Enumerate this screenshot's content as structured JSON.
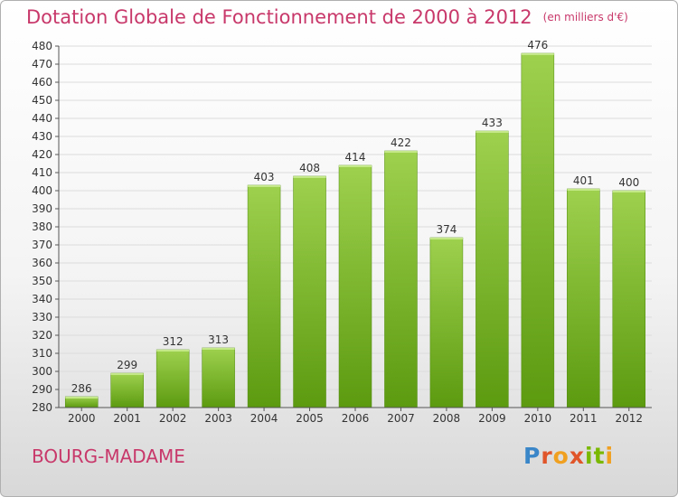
{
  "header": {
    "title": "Dotation Globale de Fonctionnement de 2000 à 2012",
    "unit": "(en milliers d'€)"
  },
  "footer": {
    "commune": "BOURG-MADAME",
    "logo": "Proxiti"
  },
  "colors": {
    "title": "#c8386a",
    "bar_top": "#9ed14e",
    "bar_bottom": "#5c9a10",
    "grid": "#dcdcdc",
    "axis": "#555555"
  },
  "chart_data": {
    "type": "bar",
    "title": "Dotation Globale de Fonctionnement de 2000 à 2012",
    "subtitle": "(en milliers d'€)",
    "xlabel": "",
    "ylabel": "",
    "categories": [
      "2000",
      "2001",
      "2002",
      "2003",
      "2004",
      "2005",
      "2006",
      "2007",
      "2008",
      "2009",
      "2010",
      "2011",
      "2012"
    ],
    "values": [
      286,
      299,
      312,
      313,
      403,
      408,
      414,
      422,
      374,
      433,
      476,
      401,
      400
    ],
    "ylim": [
      280,
      480
    ],
    "yticks": [
      280,
      290,
      300,
      310,
      320,
      330,
      340,
      350,
      360,
      370,
      380,
      390,
      400,
      410,
      420,
      430,
      440,
      450,
      460,
      470,
      480
    ],
    "grid": true,
    "data_labels": true
  }
}
